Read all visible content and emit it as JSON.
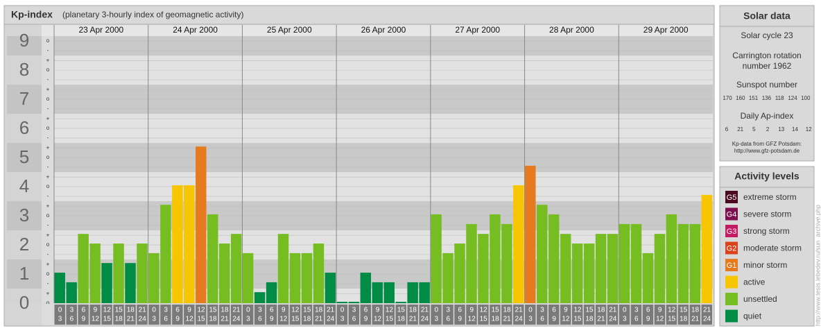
{
  "chart_data": {
    "type": "bar",
    "title": "Kp-index",
    "subtitle": "(planetary 3-hourly index of geomagnetic activity)",
    "ylim": [
      0,
      9.17
    ],
    "yticks": [
      0,
      1,
      2,
      3,
      4,
      5,
      6,
      7,
      8,
      9
    ],
    "minor_ticks": [
      {
        "value": 0,
        "label": "o"
      },
      {
        "value": 0.33,
        "label": "+"
      },
      {
        "value": 0.67,
        "label": "-"
      },
      {
        "value": 1,
        "label": "o"
      },
      {
        "value": 1.33,
        "label": "+"
      },
      {
        "value": 1.67,
        "label": "-"
      },
      {
        "value": 2,
        "label": "o"
      },
      {
        "value": 2.33,
        "label": "+"
      },
      {
        "value": 2.67,
        "label": "-"
      },
      {
        "value": 3,
        "label": "o"
      },
      {
        "value": 3.33,
        "label": "+"
      },
      {
        "value": 3.67,
        "label": "-"
      },
      {
        "value": 4,
        "label": "o"
      },
      {
        "value": 4.33,
        "label": "+"
      },
      {
        "value": 4.67,
        "label": "-"
      },
      {
        "value": 5,
        "label": "o"
      },
      {
        "value": 5.33,
        "label": "+"
      },
      {
        "value": 5.67,
        "label": "-"
      },
      {
        "value": 6,
        "label": "o"
      },
      {
        "value": 6.33,
        "label": "+"
      },
      {
        "value": 6.67,
        "label": "-"
      },
      {
        "value": 7,
        "label": "o"
      },
      {
        "value": 7.33,
        "label": "+"
      },
      {
        "value": 7.67,
        "label": "-"
      },
      {
        "value": 8,
        "label": "o"
      },
      {
        "value": 8.33,
        "label": "+"
      },
      {
        "value": 8.67,
        "label": "-"
      },
      {
        "value": 9,
        "label": "o"
      }
    ],
    "hours": [
      [
        "0",
        "3"
      ],
      [
        "3",
        "6"
      ],
      [
        "6",
        "9"
      ],
      [
        "9",
        "12"
      ],
      [
        "12",
        "15"
      ],
      [
        "15",
        "18"
      ],
      [
        "18",
        "21"
      ],
      [
        "21",
        "24"
      ]
    ],
    "series": [
      {
        "name": "23 Apr 2000",
        "values": [
          1,
          0.67,
          2.33,
          2,
          1.33,
          2,
          1.33,
          2
        ],
        "colors": [
          "#008c45",
          "#008c45",
          "#76bd22",
          "#76bd22",
          "#008c45",
          "#76bd22",
          "#008c45",
          "#76bd22"
        ]
      },
      {
        "name": "24 Apr 2000",
        "values": [
          1.67,
          3.33,
          4,
          4,
          5.33,
          3,
          2,
          2.33
        ],
        "colors": [
          "#76bd22",
          "#76bd22",
          "#f7c600",
          "#f7c600",
          "#e57a1f",
          "#76bd22",
          "#76bd22",
          "#76bd22"
        ]
      },
      {
        "name": "25 Apr 2000",
        "values": [
          1.67,
          0.33,
          0.67,
          2.33,
          1.67,
          1.67,
          2,
          1
        ],
        "colors": [
          "#76bd22",
          "#008c45",
          "#008c45",
          "#76bd22",
          "#76bd22",
          "#76bd22",
          "#76bd22",
          "#008c45"
        ]
      },
      {
        "name": "26 Apr 2000",
        "values": [
          0,
          0,
          1,
          0.67,
          0.67,
          0,
          0.67,
          0.67
        ],
        "colors": [
          "#008c45",
          "#008c45",
          "#008c45",
          "#008c45",
          "#008c45",
          "#008c45",
          "#008c45",
          "#008c45"
        ]
      },
      {
        "name": "27 Apr 2000",
        "values": [
          3,
          1.67,
          2,
          2.67,
          2.33,
          3,
          2.67,
          4
        ],
        "colors": [
          "#76bd22",
          "#76bd22",
          "#76bd22",
          "#76bd22",
          "#76bd22",
          "#76bd22",
          "#76bd22",
          "#f7c600"
        ]
      },
      {
        "name": "28 Apr 2000",
        "values": [
          4.67,
          3.33,
          3,
          2.33,
          2,
          2,
          2.33,
          2.33
        ],
        "colors": [
          "#e57a1f",
          "#76bd22",
          "#76bd22",
          "#76bd22",
          "#76bd22",
          "#76bd22",
          "#76bd22",
          "#76bd22"
        ]
      },
      {
        "name": "29 Apr 2000",
        "values": [
          2.67,
          2.67,
          1.67,
          2.33,
          3,
          2.67,
          2.67,
          3.67
        ],
        "colors": [
          "#76bd22",
          "#76bd22",
          "#76bd22",
          "#76bd22",
          "#76bd22",
          "#76bd22",
          "#76bd22",
          "#f7c600"
        ]
      }
    ]
  },
  "solar_data": {
    "title": "Solar data",
    "cycle": "Solar cycle 23",
    "carrington": [
      "Carrington rotation",
      "number 1962"
    ],
    "sunspot_title": "Sunspot number",
    "sunspot_values": [
      170,
      160,
      151,
      136,
      118,
      124,
      100
    ],
    "ap_title": "Daily Ap-index",
    "ap_values": [
      6,
      21,
      5,
      2,
      13,
      14,
      12
    ],
    "source": [
      "Kp-data from GFZ Potsdam:",
      "http://www.gfz-potsdam.de"
    ]
  },
  "activity_levels": {
    "title": "Activity levels",
    "levels": [
      {
        "badge": "G5",
        "name": "extreme storm",
        "color": "#4a0a22"
      },
      {
        "badge": "G4",
        "name": "severe storm",
        "color": "#7d0f4f"
      },
      {
        "badge": "G3",
        "name": "strong storm",
        "color": "#c31c64"
      },
      {
        "badge": "G2",
        "name": "moderate storm",
        "color": "#d9421a"
      },
      {
        "badge": "G1",
        "name": "minor storm",
        "color": "#e57a1f"
      },
      {
        "name": "active",
        "color": "#f7c600"
      },
      {
        "name": "unsettled",
        "color": "#76bd22"
      },
      {
        "name": "quiet",
        "color": "#008c45"
      }
    ]
  },
  "credit": "http://www.tesis.lebedev.ru/sun_archive.php"
}
